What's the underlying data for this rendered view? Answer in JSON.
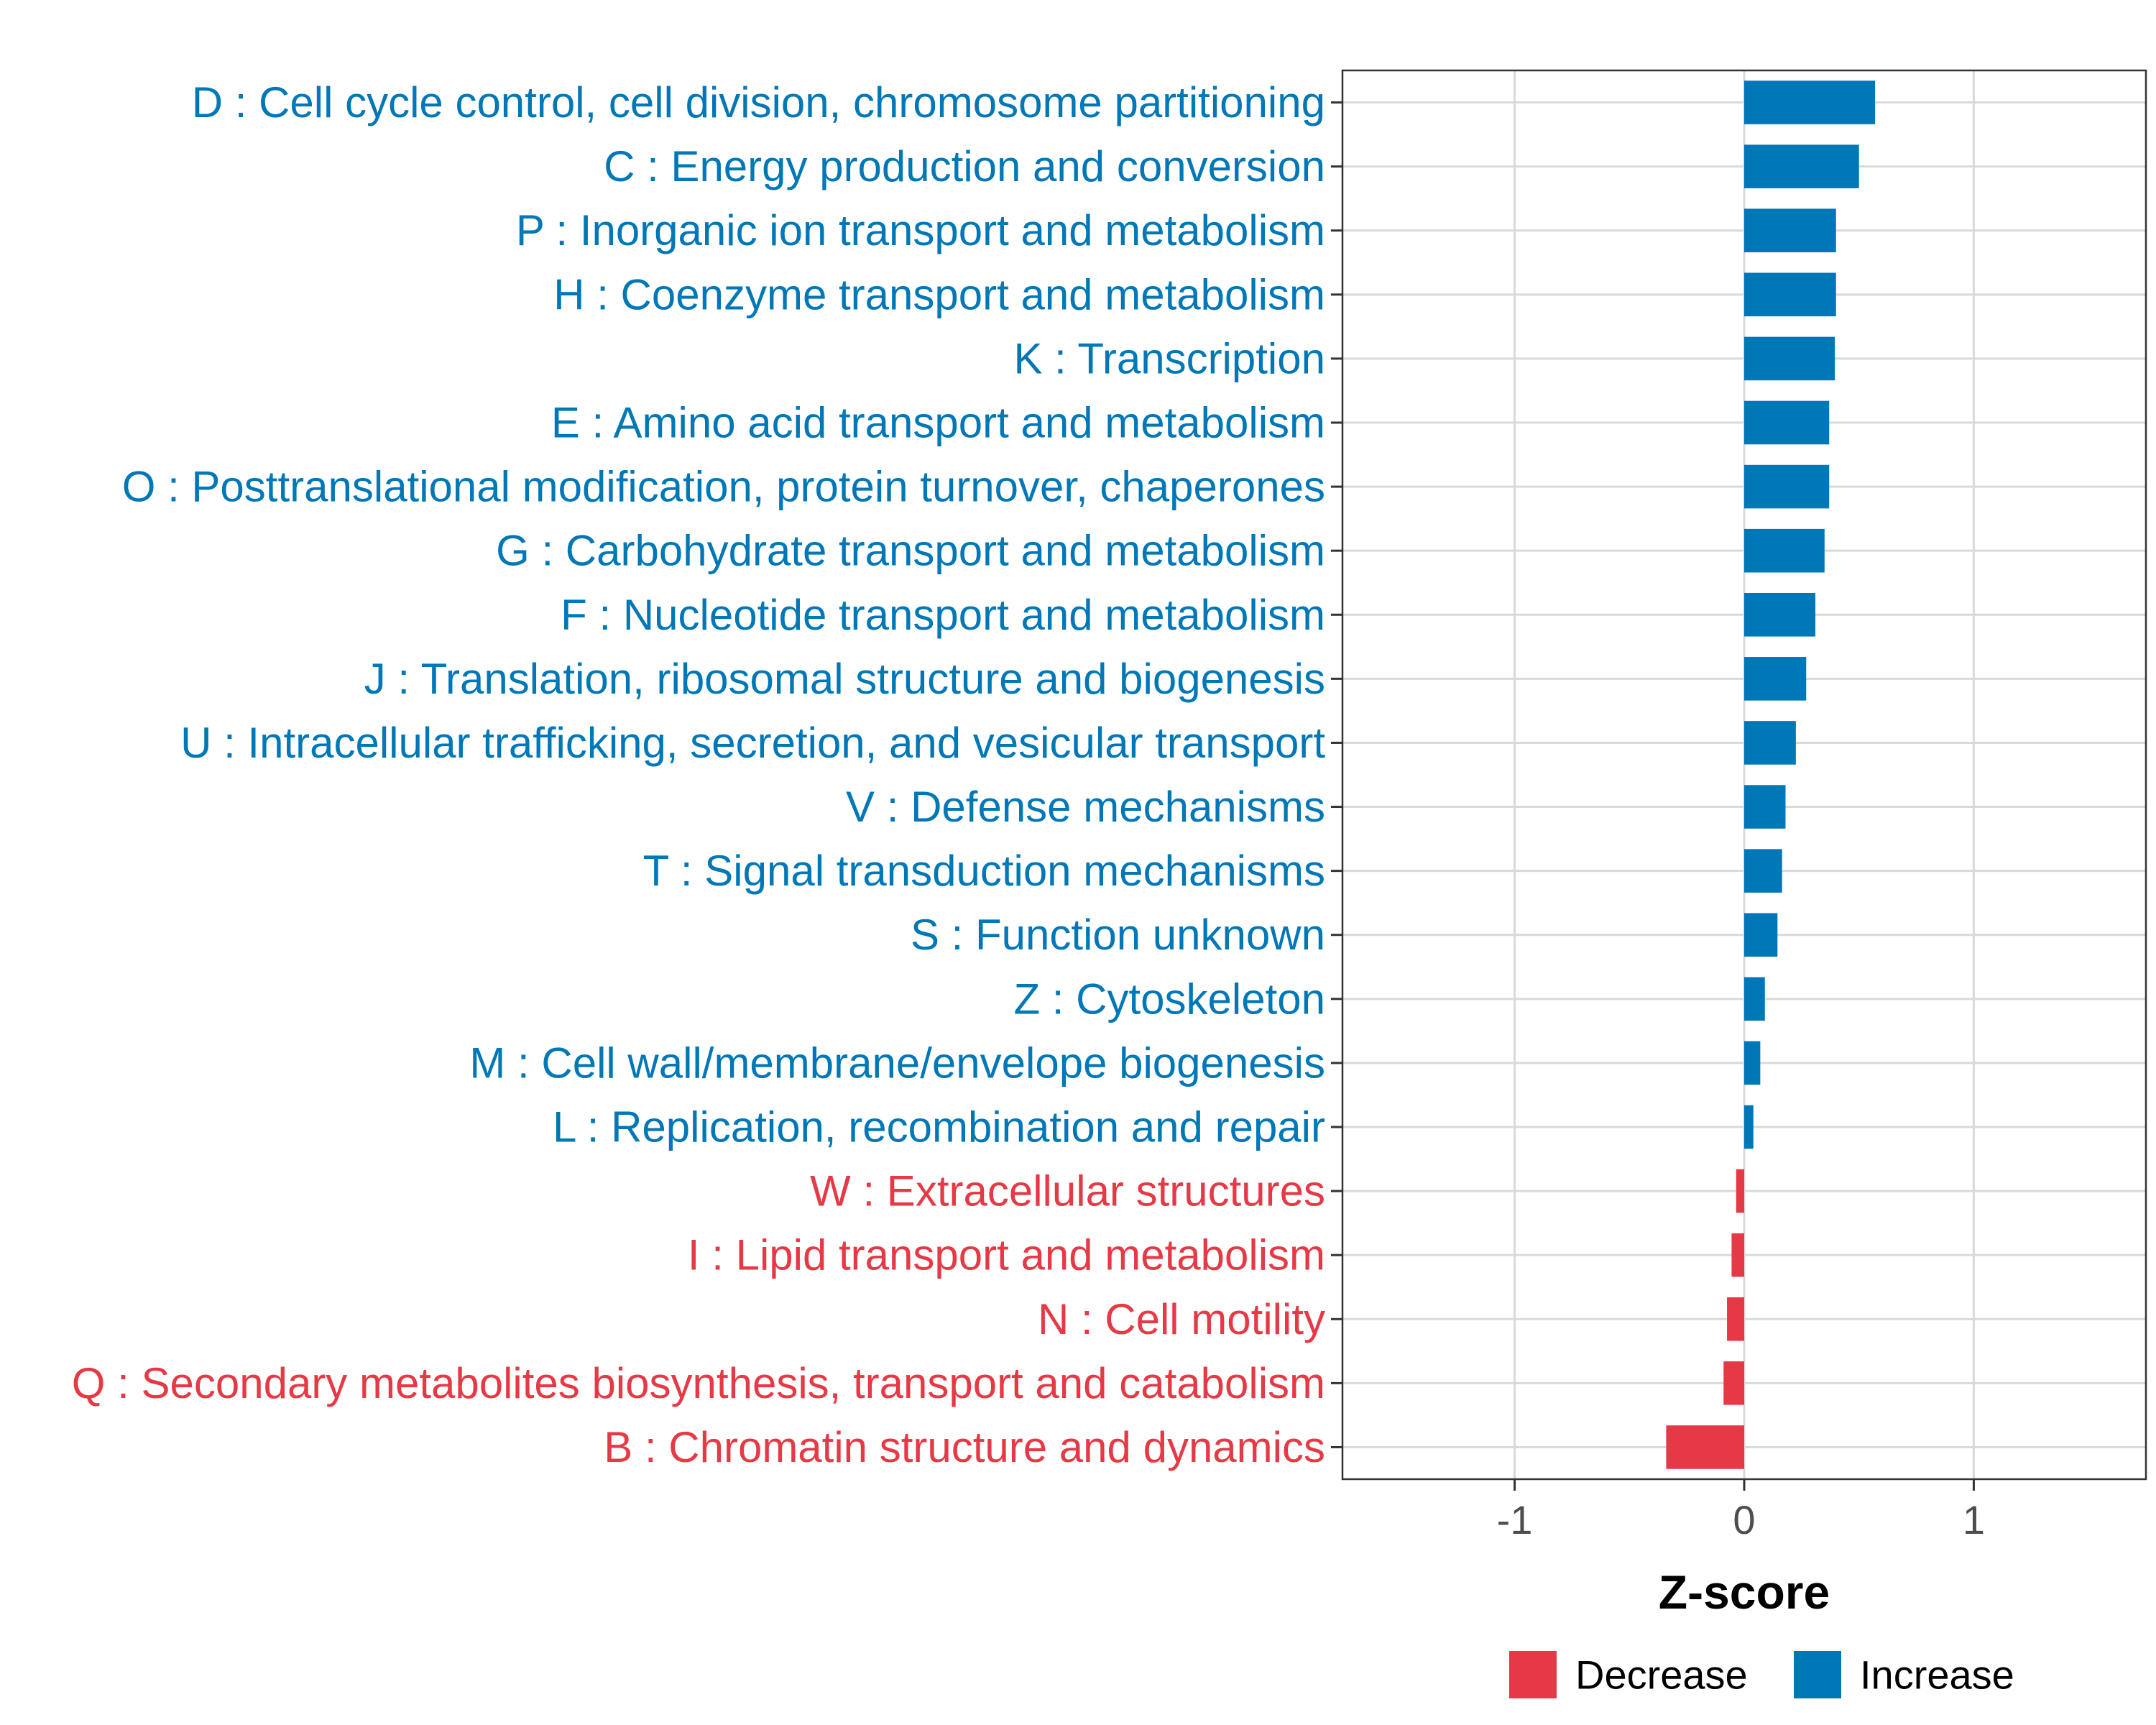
{
  "chart_data": {
    "type": "bar",
    "orientation": "horizontal",
    "title": "",
    "xlabel": "Z-score",
    "ylabel": "",
    "xlim": [
      -1.75,
      1.75
    ],
    "xticks": [
      -1,
      0,
      1
    ],
    "xtick_labels": [
      "-1",
      "0",
      "1"
    ],
    "grid": true,
    "legend_position": "bottom",
    "colors": {
      "Decrease": "#e63946",
      "Increase": "#0077b6"
    },
    "legend": [
      {
        "name": "Decrease",
        "color": "#e63946"
      },
      {
        "name": "Increase",
        "color": "#0077b6"
      }
    ],
    "categories": [
      "D : Cell cycle control, cell division, chromosome partitioning",
      "C : Energy production and conversion",
      "P : Inorganic ion transport and metabolism",
      "H : Coenzyme transport and metabolism",
      "K : Transcription",
      "E : Amino acid transport and metabolism",
      "O : Posttranslational modification, protein turnover, chaperones",
      "G : Carbohydrate transport and metabolism",
      "F : Nucleotide transport and metabolism",
      "J : Translation, ribosomal structure and biogenesis",
      "U : Intracellular trafficking, secretion, and vesicular transport",
      "V : Defense mechanisms",
      "T : Signal transduction mechanisms",
      "S : Function unknown",
      "Z : Cytoskeleton",
      "M : Cell wall/membrane/envelope biogenesis",
      "L : Replication, recombination and repair",
      "W : Extracellular structures",
      "I : Lipid transport and metabolism",
      "N : Cell motility",
      "Q : Secondary metabolites biosynthesis, transport and catabolism",
      "B : Chromatin structure and dynamics"
    ],
    "values": [
      0.57,
      0.5,
      0.4,
      0.4,
      0.395,
      0.37,
      0.37,
      0.35,
      0.31,
      0.27,
      0.225,
      0.18,
      0.165,
      0.145,
      0.09,
      0.07,
      0.04,
      -0.035,
      -0.055,
      -0.075,
      -0.09,
      -0.34
    ],
    "groups": [
      "Increase",
      "Increase",
      "Increase",
      "Increase",
      "Increase",
      "Increase",
      "Increase",
      "Increase",
      "Increase",
      "Increase",
      "Increase",
      "Increase",
      "Increase",
      "Increase",
      "Increase",
      "Increase",
      "Increase",
      "Decrease",
      "Decrease",
      "Decrease",
      "Decrease",
      "Decrease"
    ]
  }
}
